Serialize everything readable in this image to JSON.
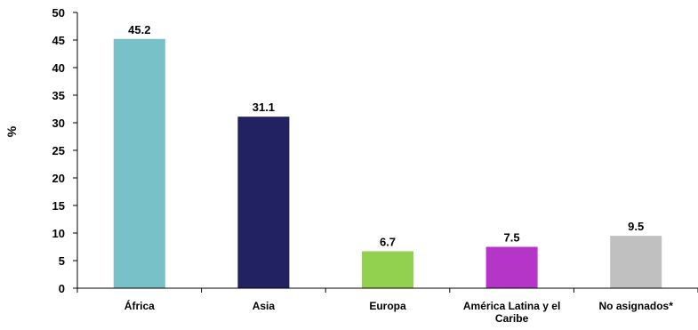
{
  "chart_data": {
    "type": "bar",
    "title": "",
    "xlabel": "",
    "ylabel": "%",
    "ylim": [
      0,
      50
    ],
    "yticks": [
      0,
      5,
      10,
      15,
      20,
      25,
      30,
      35,
      40,
      45,
      50
    ],
    "grid": false,
    "legend": "none",
    "categories": [
      [
        "África"
      ],
      [
        "Asia"
      ],
      [
        "Europa"
      ],
      [
        "América Latina y el",
        "Caribe"
      ],
      [
        "No asignados*"
      ]
    ],
    "values": [
      45.2,
      31.1,
      6.7,
      7.5,
      9.5
    ],
    "data_labels": [
      "45.2",
      "31.1",
      "6.7",
      "7.5",
      "9.5"
    ],
    "colors": [
      "#78c1c8",
      "#222262",
      "#92d050",
      "#b535c8",
      "#c0c0c0"
    ]
  }
}
